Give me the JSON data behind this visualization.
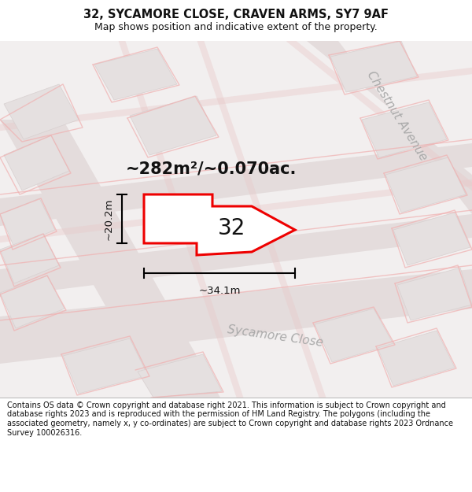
{
  "title": "32, SYCAMORE CLOSE, CRAVEN ARMS, SY7 9AF",
  "subtitle": "Map shows position and indicative extent of the property.",
  "area_label": "~282m²/~0.070ac.",
  "plot_number": "32",
  "dim_width": "~34.1m",
  "dim_height": "~20.2m",
  "street_label_bottom": "Sycamore Close",
  "street_label_right": "Chestnut Avenue",
  "footer": "Contains OS data © Crown copyright and database right 2021. This information is subject to Crown copyright and database rights 2023 and is reproduced with the permission of HM Land Registry. The polygons (including the associated geometry, namely x, y co-ordinates) are subject to Crown copyright and database rights 2023 Ordnance Survey 100026316.",
  "map_bg": "#f2efef",
  "title_fontsize": 10.5,
  "subtitle_fontsize": 9,
  "area_label_fontsize": 15,
  "plot_number_fontsize": 20,
  "dim_fontsize": 9.5,
  "street_fontsize": 11,
  "footer_fontsize": 7
}
